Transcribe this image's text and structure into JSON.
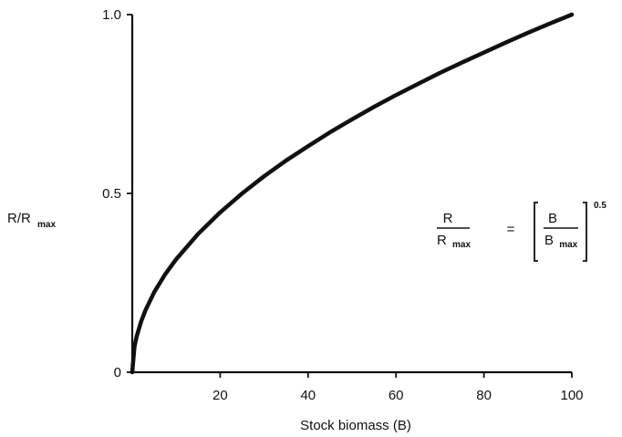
{
  "chart_data": {
    "type": "line",
    "title": "",
    "xlabel": "Stock biomass (B)",
    "ylabel": {
      "main": "R/R",
      "sub": "max"
    },
    "xlim": [
      0,
      100
    ],
    "ylim": [
      0,
      1.0
    ],
    "x_ticks": [
      {
        "value": 20,
        "label": "20"
      },
      {
        "value": 40,
        "label": "40"
      },
      {
        "value": 60,
        "label": "60"
      },
      {
        "value": 80,
        "label": "80"
      },
      {
        "value": 100,
        "label": "100"
      }
    ],
    "y_ticks": [
      {
        "value": 0,
        "label": "0"
      },
      {
        "value": 0.5,
        "label": "0.5"
      },
      {
        "value": 1.0,
        "label": "1.0"
      }
    ],
    "grid": false,
    "series": [
      {
        "x": [
          0,
          0.5,
          1,
          2,
          3,
          5,
          7.5,
          10,
          15,
          20,
          25,
          30,
          35,
          40,
          45,
          50,
          55,
          60,
          65,
          70,
          75,
          80,
          85,
          90,
          95,
          100
        ],
        "y": [
          0,
          0.071,
          0.1,
          0.141,
          0.173,
          0.224,
          0.274,
          0.316,
          0.387,
          0.447,
          0.5,
          0.548,
          0.592,
          0.632,
          0.671,
          0.707,
          0.742,
          0.775,
          0.806,
          0.837,
          0.866,
          0.894,
          0.922,
          0.949,
          0.975,
          1.0
        ]
      }
    ],
    "annotation": {
      "lhs_numerator": "R",
      "lhs_denominator": "R",
      "lhs_denominator_sub": "max",
      "equals": "=",
      "rhs_numerator": "B",
      "rhs_denominator": "B",
      "rhs_denominator_sub": "max",
      "exponent": "0.5"
    },
    "colors": {
      "line": "#111111",
      "axis": "#111111"
    }
  }
}
